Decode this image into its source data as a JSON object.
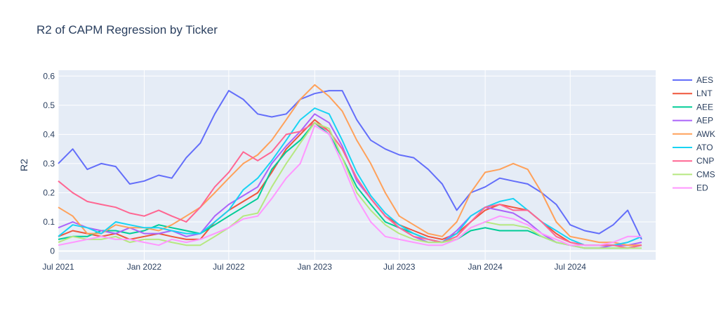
{
  "chart_data": {
    "type": "line",
    "title": "R2 of CAPM Regression by Ticker",
    "xlabel": "",
    "ylabel": "R2",
    "x_range": [
      "2021-07-01",
      "2024-12-31"
    ],
    "ylim": [
      -0.03,
      0.62
    ],
    "x_ticks": [
      {
        "date": "2021-07-01",
        "label": "Jul 2021"
      },
      {
        "date": "2022-01-01",
        "label": "Jan 2022"
      },
      {
        "date": "2022-07-01",
        "label": "Jul 2022"
      },
      {
        "date": "2023-01-01",
        "label": "Jan 2023"
      },
      {
        "date": "2023-07-01",
        "label": "Jul 2023"
      },
      {
        "date": "2024-01-01",
        "label": "Jan 2024"
      },
      {
        "date": "2024-07-01",
        "label": "Jul 2024"
      }
    ],
    "y_ticks": [
      0,
      0.1,
      0.2,
      0.3,
      0.4,
      0.5,
      0.6
    ],
    "y_tick_labels": [
      "0",
      "0.1",
      "0.2",
      "0.3",
      "0.4",
      "0.5",
      "0.6"
    ],
    "grid": true,
    "legend_position": "right",
    "dates": [
      "2021-07-01",
      "2021-08-01",
      "2021-09-01",
      "2021-10-01",
      "2021-11-01",
      "2021-12-01",
      "2022-01-01",
      "2022-02-01",
      "2022-03-01",
      "2022-04-01",
      "2022-05-01",
      "2022-06-01",
      "2022-07-01",
      "2022-08-01",
      "2022-09-01",
      "2022-10-01",
      "2022-11-01",
      "2022-12-01",
      "2023-01-01",
      "2023-02-01",
      "2023-03-01",
      "2023-04-01",
      "2023-05-01",
      "2023-06-01",
      "2023-07-01",
      "2023-08-01",
      "2023-09-01",
      "2023-10-01",
      "2023-11-01",
      "2023-12-01",
      "2024-01-01",
      "2024-02-01",
      "2024-03-01",
      "2024-04-01",
      "2024-05-01",
      "2024-06-01",
      "2024-07-01",
      "2024-08-01",
      "2024-09-01",
      "2024-10-01",
      "2024-11-01",
      "2024-12-01"
    ],
    "series": [
      {
        "name": "AES",
        "color": "#636efa",
        "values": [
          0.3,
          0.35,
          0.28,
          0.3,
          0.29,
          0.23,
          0.24,
          0.26,
          0.25,
          0.32,
          0.37,
          0.47,
          0.55,
          0.52,
          0.47,
          0.46,
          0.47,
          0.52,
          0.54,
          0.55,
          0.55,
          0.45,
          0.38,
          0.35,
          0.33,
          0.32,
          0.28,
          0.23,
          0.14,
          0.2,
          0.22,
          0.25,
          0.24,
          0.23,
          0.2,
          0.16,
          0.09,
          0.07,
          0.06,
          0.09,
          0.14,
          0.04
        ]
      },
      {
        "name": "LNT",
        "color": "#EF553B",
        "values": [
          0.05,
          0.07,
          0.06,
          0.05,
          0.06,
          0.04,
          0.05,
          0.06,
          0.05,
          0.04,
          0.04,
          0.1,
          0.14,
          0.17,
          0.2,
          0.27,
          0.35,
          0.4,
          0.45,
          0.41,
          0.35,
          0.25,
          0.18,
          0.12,
          0.09,
          0.07,
          0.05,
          0.04,
          0.06,
          0.1,
          0.14,
          0.16,
          0.15,
          0.14,
          0.1,
          0.06,
          0.03,
          0.02,
          0.02,
          0.02,
          0.02,
          0.02
        ]
      },
      {
        "name": "AEE",
        "color": "#00cc96",
        "values": [
          0.04,
          0.05,
          0.05,
          0.07,
          0.07,
          0.06,
          0.07,
          0.09,
          0.08,
          0.07,
          0.06,
          0.09,
          0.12,
          0.15,
          0.18,
          0.28,
          0.34,
          0.38,
          0.44,
          0.4,
          0.32,
          0.22,
          0.16,
          0.1,
          0.08,
          0.06,
          0.04,
          0.03,
          0.04,
          0.07,
          0.08,
          0.07,
          0.07,
          0.07,
          0.05,
          0.03,
          0.02,
          0.01,
          0.01,
          0.01,
          0.01,
          0.02
        ]
      },
      {
        "name": "AEP",
        "color": "#ab63fa",
        "values": [
          0.08,
          0.1,
          0.08,
          0.07,
          0.06,
          0.08,
          0.06,
          0.06,
          0.07,
          0.05,
          0.06,
          0.12,
          0.16,
          0.19,
          0.22,
          0.3,
          0.36,
          0.41,
          0.47,
          0.44,
          0.36,
          0.24,
          0.18,
          0.12,
          0.08,
          0.05,
          0.03,
          0.03,
          0.07,
          0.12,
          0.15,
          0.14,
          0.13,
          0.1,
          0.06,
          0.03,
          0.02,
          0.01,
          0.01,
          0.02,
          0.02,
          0.03
        ]
      },
      {
        "name": "AWK",
        "color": "#FFA15A",
        "values": [
          0.15,
          0.12,
          0.06,
          0.06,
          0.09,
          0.08,
          0.08,
          0.07,
          0.09,
          0.12,
          0.15,
          0.2,
          0.25,
          0.3,
          0.33,
          0.38,
          0.45,
          0.52,
          0.57,
          0.53,
          0.48,
          0.38,
          0.3,
          0.2,
          0.12,
          0.09,
          0.06,
          0.05,
          0.1,
          0.2,
          0.27,
          0.28,
          0.3,
          0.28,
          0.2,
          0.1,
          0.05,
          0.04,
          0.03,
          0.03,
          0.02,
          0.02
        ]
      },
      {
        "name": "ATO",
        "color": "#19d3f3",
        "values": [
          0.05,
          0.09,
          0.08,
          0.06,
          0.1,
          0.09,
          0.08,
          0.08,
          0.07,
          0.06,
          0.06,
          0.1,
          0.14,
          0.21,
          0.25,
          0.31,
          0.38,
          0.45,
          0.49,
          0.47,
          0.38,
          0.27,
          0.19,
          0.13,
          0.09,
          0.06,
          0.04,
          0.03,
          0.06,
          0.12,
          0.15,
          0.17,
          0.18,
          0.14,
          0.1,
          0.07,
          0.04,
          0.02,
          0.02,
          0.02,
          0.03,
          0.05
        ]
      },
      {
        "name": "CNP",
        "color": "#FF6692",
        "values": [
          0.24,
          0.2,
          0.17,
          0.16,
          0.15,
          0.13,
          0.12,
          0.14,
          0.12,
          0.1,
          0.15,
          0.22,
          0.27,
          0.34,
          0.31,
          0.34,
          0.4,
          0.41,
          0.44,
          0.41,
          0.35,
          0.25,
          0.18,
          0.12,
          0.08,
          0.05,
          0.04,
          0.03,
          0.05,
          0.1,
          0.15,
          0.16,
          0.14,
          0.14,
          0.1,
          0.05,
          0.03,
          0.02,
          0.02,
          0.02,
          0.01,
          0.02
        ]
      },
      {
        "name": "CMS",
        "color": "#B6E880",
        "values": [
          0.03,
          0.05,
          0.04,
          0.04,
          0.05,
          0.03,
          0.04,
          0.04,
          0.03,
          0.02,
          0.02,
          0.05,
          0.08,
          0.12,
          0.13,
          0.22,
          0.3,
          0.37,
          0.44,
          0.42,
          0.32,
          0.2,
          0.14,
          0.09,
          0.06,
          0.04,
          0.03,
          0.03,
          0.04,
          0.08,
          0.1,
          0.09,
          0.09,
          0.08,
          0.05,
          0.03,
          0.02,
          0.01,
          0.01,
          0.01,
          0.01,
          0.01
        ]
      },
      {
        "name": "ED",
        "color": "#FF97FF",
        "values": [
          0.02,
          0.03,
          0.04,
          0.05,
          0.04,
          0.04,
          0.03,
          0.02,
          0.04,
          0.03,
          0.04,
          0.06,
          0.08,
          0.11,
          0.12,
          0.18,
          0.25,
          0.3,
          0.43,
          0.4,
          0.3,
          0.18,
          0.1,
          0.05,
          0.04,
          0.03,
          0.02,
          0.02,
          0.04,
          0.08,
          0.1,
          0.12,
          0.11,
          0.09,
          0.06,
          0.04,
          0.02,
          0.02,
          0.02,
          0.03,
          0.05,
          0.05
        ]
      }
    ]
  }
}
